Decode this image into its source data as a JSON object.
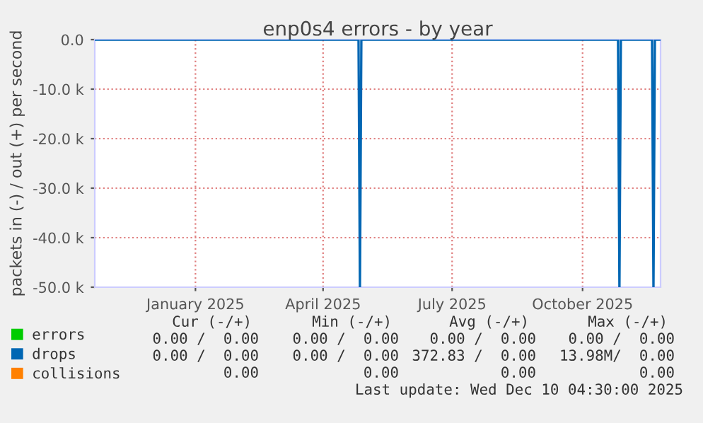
{
  "chart_data": {
    "type": "line",
    "title": "enp0s4 errors - by year",
    "ylabel": "packets in (-) / out (+) per second",
    "xlim": [
      "2024-11-06",
      "2025-12-10"
    ],
    "xticks": [
      {
        "value": "2025-01-16",
        "label": "January 2025"
      },
      {
        "value": "2025-04-16",
        "label": "April 2025"
      },
      {
        "value": "2025-07-16",
        "label": "July 2025"
      },
      {
        "value": "2025-10-16",
        "label": "October 2025"
      }
    ],
    "ylim": [
      -50000,
      0
    ],
    "yticks": [
      {
        "value": 0,
        "label": "0.0"
      },
      {
        "value": -10000,
        "label": "-10.0 k"
      },
      {
        "value": -20000,
        "label": "-20.0 k"
      },
      {
        "value": -30000,
        "label": "-30.0 k"
      },
      {
        "value": -40000,
        "label": "-40.0 k"
      },
      {
        "value": -50000,
        "label": "-50.0 k"
      }
    ],
    "grid": true,
    "legend": "bottom left",
    "series": [
      {
        "name": "errors",
        "color": "#00cc00"
      },
      {
        "name": "collisions",
        "color": "#ff8000"
      },
      {
        "name": "drops",
        "color": "#0066b3",
        "x": [
          "2024-11-06",
          "2025-05-11",
          "2025-05-12",
          "2025-05-13",
          "2025-11-10",
          "2025-11-11",
          "2025-11-12",
          "2025-12-04",
          "2025-12-05",
          "2025-12-06",
          "2025-12-10"
        ],
        "values": [
          0,
          0,
          -50000,
          0,
          0,
          -50000,
          0,
          0,
          -50000,
          0,
          0
        ]
      }
    ],
    "annotations": [
      "Cur (-/+)",
      "Min (-/+)",
      "Avg (-/+)",
      "Max (-/+)",
      "0.00 /  0.00",
      "0.00 /  0.00",
      "0.00 /  0.00",
      "0.00 /  0.00",
      "0.00 /  0.00",
      "0.00 /  0.00",
      "372.83 /  0.00",
      "13.98M/  0.00",
      "0.00",
      "0.00",
      "0.00",
      "0.00",
      "Last update: Wed Dec 10 04:30:00 2025"
    ]
  }
}
